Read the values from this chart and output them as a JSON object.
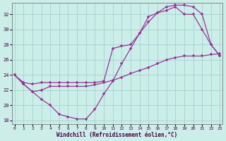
{
  "bg_color": "#cceee8",
  "grid_color": "#99cccc",
  "line_color": "#993399",
  "xlim": [
    -0.3,
    23.3
  ],
  "ylim": [
    17.5,
    33.5
  ],
  "xticks": [
    0,
    1,
    2,
    3,
    4,
    5,
    6,
    7,
    8,
    9,
    10,
    11,
    12,
    13,
    14,
    15,
    16,
    17,
    18,
    19,
    20,
    21,
    22,
    23
  ],
  "yticks": [
    18,
    20,
    22,
    24,
    26,
    28,
    30,
    32
  ],
  "xlabel": "Windchill (Refroidissement éolien,°C)",
  "line1_x": [
    0,
    1,
    2,
    3,
    4,
    5,
    6,
    7,
    8,
    9,
    10,
    11,
    12,
    13,
    14,
    15,
    16,
    17,
    18,
    19,
    20,
    21,
    22,
    23
  ],
  "line1_y": [
    24.0,
    23.0,
    22.8,
    23.0,
    23.0,
    23.0,
    23.0,
    23.0,
    23.0,
    23.0,
    23.2,
    27.5,
    27.8,
    28.0,
    29.5,
    31.0,
    32.2,
    33.0,
    33.2,
    33.2,
    33.0,
    32.0,
    28.0,
    26.5
  ],
  "line2_x": [
    0,
    1,
    2,
    3,
    4,
    5,
    6,
    7,
    8,
    9,
    10,
    11,
    12,
    13,
    14,
    15,
    16,
    17,
    18,
    19,
    20,
    21,
    22,
    23
  ],
  "line2_y": [
    24.0,
    22.8,
    21.8,
    20.8,
    20.0,
    18.8,
    18.5,
    18.2,
    18.2,
    19.5,
    21.5,
    23.2,
    25.5,
    27.5,
    29.5,
    31.7,
    32.2,
    32.5,
    33.0,
    32.0,
    32.0,
    30.0,
    28.0,
    26.5
  ],
  "line3_x": [
    0,
    1,
    2,
    3,
    4,
    5,
    6,
    7,
    8,
    9,
    10,
    11,
    12,
    13,
    14,
    15,
    16,
    17,
    18,
    19,
    20,
    21,
    22,
    23
  ],
  "line3_y": [
    24.0,
    22.8,
    21.8,
    22.0,
    22.5,
    22.5,
    22.5,
    22.5,
    22.5,
    22.7,
    23.0,
    23.3,
    23.7,
    24.2,
    24.6,
    25.0,
    25.5,
    26.0,
    26.3,
    26.5,
    26.5,
    26.5,
    26.7,
    26.8
  ]
}
